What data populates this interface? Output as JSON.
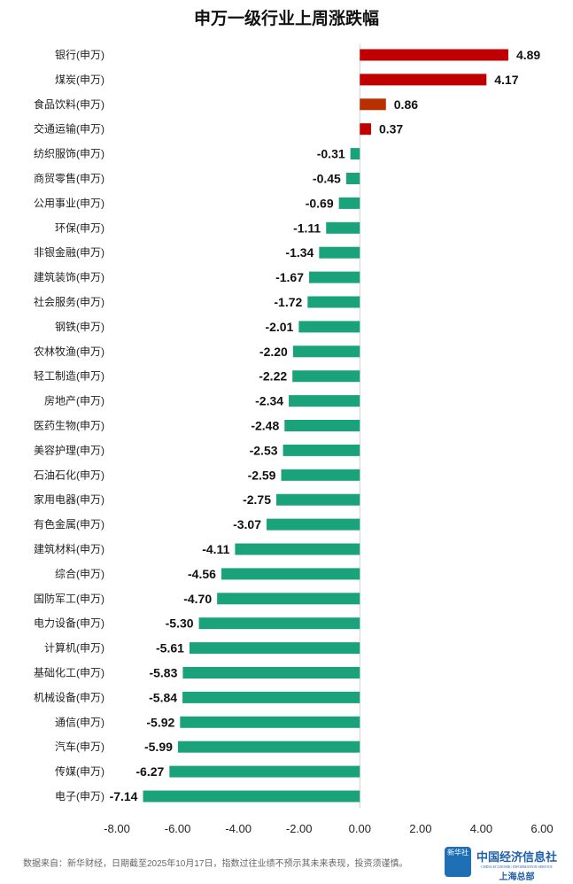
{
  "chart_data": {
    "type": "bar",
    "orientation": "horizontal",
    "title": "申万一级行业上周涨跌幅",
    "categories": [
      "银行(申万)",
      "煤炭(申万)",
      "食品饮料(申万)",
      "交通运输(申万)",
      "纺织服饰(申万)",
      "商贸零售(申万)",
      "公用事业(申万)",
      "环保(申万)",
      "非银金融(申万)",
      "建筑装饰(申万)",
      "社会服务(申万)",
      "钢铁(申万)",
      "农林牧渔(申万)",
      "轻工制造(申万)",
      "房地产(申万)",
      "医药生物(申万)",
      "美容护理(申万)",
      "石油石化(申万)",
      "家用电器(申万)",
      "有色金属(申万)",
      "建筑材料(申万)",
      "综合(申万)",
      "国防军工(申万)",
      "电力设备(申万)",
      "计算机(申万)",
      "基础化工(申万)",
      "机械设备(申万)",
      "通信(申万)",
      "汽车(申万)",
      "传媒(申万)",
      "电子(申万)"
    ],
    "values": [
      4.89,
      4.17,
      0.86,
      0.37,
      -0.31,
      -0.45,
      -0.69,
      -1.11,
      -1.34,
      -1.67,
      -1.72,
      -2.01,
      -2.2,
      -2.22,
      -2.34,
      -2.48,
      -2.53,
      -2.59,
      -2.75,
      -3.07,
      -4.11,
      -4.56,
      -4.7,
      -5.3,
      -5.61,
      -5.83,
      -5.84,
      -5.92,
      -5.99,
      -6.27,
      -7.14
    ],
    "value_labels": [
      "4.89",
      "4.17",
      "0.86",
      "0.37",
      "-0.31",
      "-0.45",
      "-0.69",
      "-1.11",
      "-1.34",
      "-1.67",
      "-1.72",
      "-2.01",
      "-2.20",
      "-2.22",
      "-2.34",
      "-2.48",
      "-2.53",
      "-2.59",
      "-2.75",
      "-3.07",
      "-4.11",
      "-4.56",
      "-4.70",
      "-5.30",
      "-5.61",
      "-5.83",
      "-5.84",
      "-5.92",
      "-5.99",
      "-6.27",
      "-7.14"
    ],
    "xlim": [
      -8,
      6
    ],
    "xticks": [
      "-8.00",
      "-6.00",
      "-4.00",
      "-2.00",
      "0.00",
      "2.00",
      "4.00",
      "6.00"
    ],
    "xtick_values": [
      -8,
      -6,
      -4,
      -2,
      0,
      2,
      4,
      6
    ],
    "grid": false,
    "colors": {
      "positive": "#c00000",
      "highlight": "#b83000",
      "negative": "#1aa37a"
    }
  },
  "footer": "数据来自：新华财经，日期截至2025年10月17日，指数过往业绩不预示其未来表现，投资须谨慎。",
  "logo": {
    "app": "新华社",
    "org_name": "中国经济信息社",
    "org_en": "CHINA ECONOMIC INFORMATION SERVICE",
    "branch": "上海总部"
  }
}
